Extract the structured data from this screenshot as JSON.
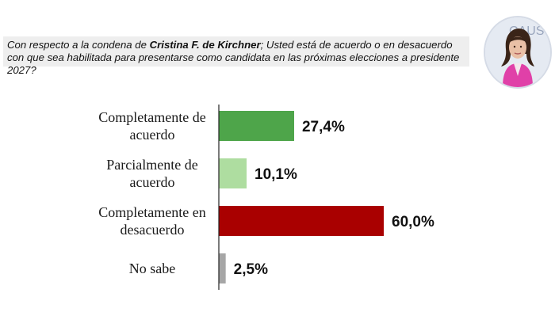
{
  "question": {
    "pre": "Con respecto a la condena de ",
    "emphasis": "Cristina F. de Kirchner",
    "post": "; Usted está de acuerdo o en desacuerdo con que sea habilitada para presentarse como candidata en las próximas elecciones a presidente 2027?"
  },
  "avatar": {
    "icon": "person-photo-icon",
    "text": "CAUS"
  },
  "chart_data": {
    "type": "bar",
    "orientation": "horizontal",
    "categories": [
      [
        "Completamente de",
        "acuerdo"
      ],
      [
        "Parcialmente de",
        "acuerdo"
      ],
      [
        "Completamente en",
        "desacuerdo"
      ],
      [
        "No sabe"
      ]
    ],
    "values": [
      27.4,
      10.1,
      60.0,
      2.5
    ],
    "value_labels": [
      "27,4%",
      "10,1%",
      "60,0%",
      "2,5%"
    ],
    "colors": [
      "#4ea54a",
      "#aedda0",
      "#a90000",
      "#a6a6a6"
    ],
    "xlim": [
      0,
      60
    ],
    "grid": false
  }
}
